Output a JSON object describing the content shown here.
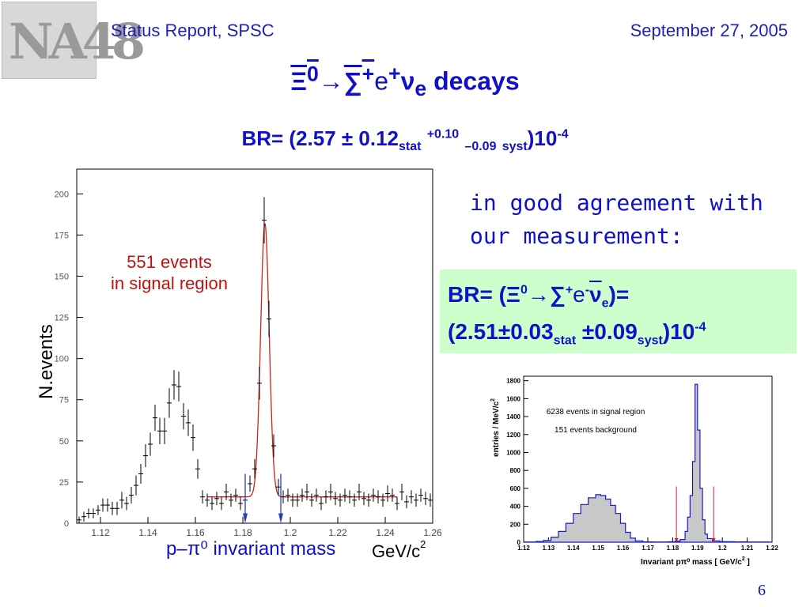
{
  "header": {
    "left": "Status Report, SPSC",
    "right": "September 27, 2005",
    "logo_text": "NA48"
  },
  "slide": {
    "title_pre": "Ξ",
    "title_xi_sup": "0",
    "title_arrow": "→",
    "title_sigma": "∑",
    "title_sigma_sup": "+",
    "title_e": "e",
    "title_e_sup": "+",
    "title_nu": "ν",
    "title_nu_sub": "e",
    "title_word": "decays",
    "br_main_prefix": "BR= (",
    "br_main_value": "2.57 ± 0.12",
    "br_main_stat": "stat",
    "br_main_syst_up": "+0.10",
    "br_main_syst_down": "–0.09",
    "br_main_syst": "syst",
    "br_main_suffix": ")10",
    "br_main_exp": "-4",
    "agreement_line1": "in good agreement with",
    "agreement_line2": "our measurement:",
    "br_meas_prefix": "BR= (",
    "br_meas_xi": "Ξ",
    "br_meas_xi_sup": "0",
    "br_meas_arrow": "→",
    "br_meas_sigma": "∑",
    "br_meas_sigma_sup": "+",
    "br_meas_e": "e",
    "br_meas_e_sup": "-",
    "br_meas_nu": "ν",
    "br_meas_nu_sub": "e",
    "br_meas_close": ")=",
    "br_meas2_prefix": "(",
    "br_meas2_value": "2.51±0.03",
    "br_meas2_stat": "stat",
    "br_meas2_syst_val": " ±0.09",
    "br_meas2_syst": "syst",
    "br_meas2_suffix": ")10",
    "br_meas2_exp": "-4",
    "page_number": "6"
  },
  "chart_data": [
    {
      "type": "scatter",
      "xlabel": "p–π⁰ invariant mass",
      "xunit": "GeV/c",
      "xunit_sup": "2",
      "ylabel": "N.events",
      "annotation_line1": "551 events",
      "annotation_line2": "in signal region",
      "xlim": [
        1.11,
        1.26
      ],
      "ylim": [
        0,
        215
      ],
      "xticks": [
        "1.12",
        "1.14",
        "1.16",
        "1.18",
        "1.2",
        "1.22",
        "1.24",
        "1.26"
      ],
      "yticks": [
        "0",
        "25",
        "50",
        "75",
        "100",
        "125",
        "150",
        "175",
        "200"
      ],
      "signal_window": [
        1.181,
        1.196
      ],
      "colors": {
        "points": "#000000",
        "fit": "#cc2222",
        "arrows": "#2040c0",
        "annotation": "#c01010",
        "xlabel": "#1010c8"
      },
      "fit": {
        "background": 16,
        "peak_center": 1.1893,
        "peak_height": 166,
        "peak_sigma": 0.0018
      },
      "points": [
        {
          "x": 1.111,
          "y": 2,
          "e": 2
        },
        {
          "x": 1.113,
          "y": 4,
          "e": 3
        },
        {
          "x": 1.115,
          "y": 6,
          "e": 3
        },
        {
          "x": 1.117,
          "y": 6,
          "e": 3
        },
        {
          "x": 1.119,
          "y": 8,
          "e": 3
        },
        {
          "x": 1.121,
          "y": 11,
          "e": 4
        },
        {
          "x": 1.123,
          "y": 11,
          "e": 4
        },
        {
          "x": 1.125,
          "y": 9,
          "e": 4
        },
        {
          "x": 1.127,
          "y": 9,
          "e": 4
        },
        {
          "x": 1.129,
          "y": 14,
          "e": 5
        },
        {
          "x": 1.131,
          "y": 12,
          "e": 4
        },
        {
          "x": 1.133,
          "y": 17,
          "e": 5
        },
        {
          "x": 1.135,
          "y": 23,
          "e": 6
        },
        {
          "x": 1.137,
          "y": 30,
          "e": 6
        },
        {
          "x": 1.139,
          "y": 41,
          "e": 7
        },
        {
          "x": 1.141,
          "y": 48,
          "e": 7
        },
        {
          "x": 1.143,
          "y": 64,
          "e": 8
        },
        {
          "x": 1.145,
          "y": 56,
          "e": 8
        },
        {
          "x": 1.147,
          "y": 56,
          "e": 8
        },
        {
          "x": 1.149,
          "y": 73,
          "e": 9
        },
        {
          "x": 1.151,
          "y": 84,
          "e": 9
        },
        {
          "x": 1.153,
          "y": 83,
          "e": 9
        },
        {
          "x": 1.155,
          "y": 65,
          "e": 8
        },
        {
          "x": 1.157,
          "y": 61,
          "e": 8
        },
        {
          "x": 1.159,
          "y": 52,
          "e": 8
        },
        {
          "x": 1.161,
          "y": 33,
          "e": 6
        },
        {
          "x": 1.163,
          "y": 16,
          "e": 4
        },
        {
          "x": 1.165,
          "y": 14,
          "e": 4
        },
        {
          "x": 1.167,
          "y": 12,
          "e": 4
        },
        {
          "x": 1.169,
          "y": 15,
          "e": 4
        },
        {
          "x": 1.171,
          "y": 12,
          "e": 4
        },
        {
          "x": 1.173,
          "y": 19,
          "e": 5
        },
        {
          "x": 1.175,
          "y": 14,
          "e": 4
        },
        {
          "x": 1.177,
          "y": 17,
          "e": 4
        },
        {
          "x": 1.179,
          "y": 12,
          "e": 4
        },
        {
          "x": 1.181,
          "y": 14,
          "e": 4
        },
        {
          "x": 1.183,
          "y": 24,
          "e": 5
        },
        {
          "x": 1.185,
          "y": 33,
          "e": 6
        },
        {
          "x": 1.187,
          "y": 85,
          "e": 10
        },
        {
          "x": 1.189,
          "y": 184,
          "e": 14
        },
        {
          "x": 1.191,
          "y": 124,
          "e": 11
        },
        {
          "x": 1.193,
          "y": 47,
          "e": 7
        },
        {
          "x": 1.195,
          "y": 22,
          "e": 5
        },
        {
          "x": 1.197,
          "y": 16,
          "e": 4
        },
        {
          "x": 1.199,
          "y": 17,
          "e": 4
        },
        {
          "x": 1.201,
          "y": 14,
          "e": 4
        },
        {
          "x": 1.203,
          "y": 14,
          "e": 4
        },
        {
          "x": 1.205,
          "y": 17,
          "e": 4
        },
        {
          "x": 1.207,
          "y": 19,
          "e": 5
        },
        {
          "x": 1.209,
          "y": 14,
          "e": 4
        },
        {
          "x": 1.211,
          "y": 17,
          "e": 4
        },
        {
          "x": 1.213,
          "y": 12,
          "e": 4
        },
        {
          "x": 1.215,
          "y": 16,
          "e": 4
        },
        {
          "x": 1.217,
          "y": 19,
          "e": 5
        },
        {
          "x": 1.219,
          "y": 15,
          "e": 4
        },
        {
          "x": 1.221,
          "y": 14,
          "e": 4
        },
        {
          "x": 1.223,
          "y": 17,
          "e": 4
        },
        {
          "x": 1.225,
          "y": 16,
          "e": 4
        },
        {
          "x": 1.227,
          "y": 14,
          "e": 4
        },
        {
          "x": 1.229,
          "y": 19,
          "e": 5
        },
        {
          "x": 1.231,
          "y": 15,
          "e": 4
        },
        {
          "x": 1.233,
          "y": 14,
          "e": 4
        },
        {
          "x": 1.235,
          "y": 17,
          "e": 4
        },
        {
          "x": 1.237,
          "y": 16,
          "e": 4
        },
        {
          "x": 1.239,
          "y": 14,
          "e": 4
        },
        {
          "x": 1.241,
          "y": 18,
          "e": 5
        },
        {
          "x": 1.243,
          "y": 17,
          "e": 4
        },
        {
          "x": 1.245,
          "y": 12,
          "e": 4
        },
        {
          "x": 1.247,
          "y": 19,
          "e": 5
        },
        {
          "x": 1.249,
          "y": 13,
          "e": 4
        },
        {
          "x": 1.251,
          "y": 16,
          "e": 4
        },
        {
          "x": 1.253,
          "y": 14,
          "e": 4
        },
        {
          "x": 1.255,
          "y": 17,
          "e": 4
        },
        {
          "x": 1.257,
          "y": 15,
          "e": 4
        },
        {
          "x": 1.259,
          "y": 14,
          "e": 4
        }
      ]
    },
    {
      "type": "area",
      "xlabel": "Invariant pπ⁰ mass [ GeV/c",
      "xlabel_sup": "2",
      "xlabel_end": " ]",
      "ylabel": "entries / MeV/c",
      "ylabel_sup": "2",
      "annotation_line1": "6238 events in signal region",
      "annotation_line2": "151 events background",
      "xlim": [
        1.12,
        1.22
      ],
      "ylim": [
        0,
        1850
      ],
      "xticks": [
        "1.12",
        "1.13",
        "1.14",
        "1.15",
        "1.16",
        "1.17",
        "1.18",
        "1.19",
        "1.2",
        "1.21",
        "1.22"
      ],
      "yticks": [
        "0",
        "200",
        "400",
        "600",
        "800",
        "1000",
        "1200",
        "1400",
        "1600",
        "1800"
      ],
      "signal_window": [
        1.1815,
        1.1965
      ],
      "colors": {
        "fill": "#c8c8c8",
        "line": "#1a1ad0",
        "arrows": "#cc2222"
      },
      "bins_width": 0.001,
      "bins": [
        {
          "x": 1.12,
          "y": 2
        },
        {
          "x": 1.125,
          "y": 8
        },
        {
          "x": 1.128,
          "y": 20
        },
        {
          "x": 1.131,
          "y": 55
        },
        {
          "x": 1.134,
          "y": 120
        },
        {
          "x": 1.137,
          "y": 210
        },
        {
          "x": 1.14,
          "y": 320
        },
        {
          "x": 1.143,
          "y": 420
        },
        {
          "x": 1.146,
          "y": 495
        },
        {
          "x": 1.149,
          "y": 530
        },
        {
          "x": 1.151,
          "y": 520
        },
        {
          "x": 1.153,
          "y": 480
        },
        {
          "x": 1.155,
          "y": 410
        },
        {
          "x": 1.157,
          "y": 320
        },
        {
          "x": 1.159,
          "y": 210
        },
        {
          "x": 1.161,
          "y": 110
        },
        {
          "x": 1.163,
          "y": 45
        },
        {
          "x": 1.165,
          "y": 15
        },
        {
          "x": 1.168,
          "y": 4
        },
        {
          "x": 1.172,
          "y": 2
        },
        {
          "x": 1.178,
          "y": 5
        },
        {
          "x": 1.181,
          "y": 12
        },
        {
          "x": 1.183,
          "y": 30
        },
        {
          "x": 1.185,
          "y": 120
        },
        {
          "x": 1.186,
          "y": 280
        },
        {
          "x": 1.187,
          "y": 520
        },
        {
          "x": 1.188,
          "y": 900
        },
        {
          "x": 1.189,
          "y": 1760
        },
        {
          "x": 1.19,
          "y": 1250
        },
        {
          "x": 1.191,
          "y": 600
        },
        {
          "x": 1.192,
          "y": 250
        },
        {
          "x": 1.193,
          "y": 90
        },
        {
          "x": 1.194,
          "y": 40
        },
        {
          "x": 1.196,
          "y": 15
        },
        {
          "x": 1.199,
          "y": 6
        },
        {
          "x": 1.205,
          "y": 3
        },
        {
          "x": 1.21,
          "y": 2
        },
        {
          "x": 1.219,
          "y": 1
        }
      ]
    }
  ]
}
